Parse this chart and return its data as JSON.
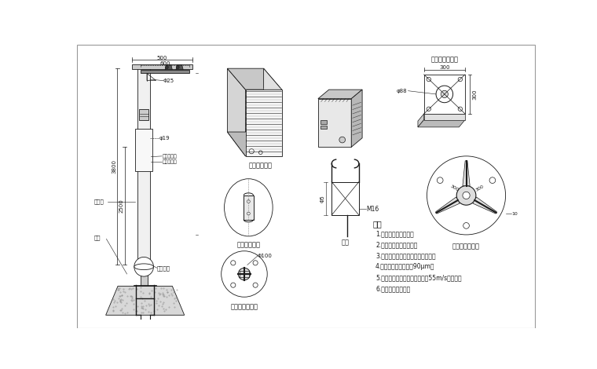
{
  "bg_color": "#ffffff",
  "line_color": "#1a1a1a",
  "labels": {
    "shuixiang": "防水箱放大图",
    "xiufu": "维修孔放大图",
    "jijia": "扬机法兰放大图",
    "dizuo_zheng": "底座法兰正视图",
    "dizuo_fang": "底座法兰放大图",
    "dijiao": "地笼",
    "shuoming": "说明",
    "weixiukong": "维修孔",
    "dizuofalan": "底座法兰",
    "dilong": "地笼",
    "shanglayer": "上层为红色",
    "xialayer": "下层为銀色",
    "line1": "1.主干为国标频锦管。",
    "line2": "2.上下法兰加强届连接。",
    "line3": "3.噪涂后不再进行任何加工和焊接。",
    "line4": "4.钉管弹锦锅层厉孔为90μm。",
    "line5": "5.立杆、梗管和其它部件应能抔55m/s的风速。",
    "line6": "6.接管、避雷针可折"
  },
  "dims": {
    "d500": "500",
    "d600": "600",
    "d3800": "3800",
    "d2500": "2500",
    "phi25": "Φ25",
    "phi19": "φ19",
    "phi88": "φ88",
    "d300h": "300",
    "d300v": "300",
    "M16": "M16",
    "phi5": "Φ5",
    "phi100": "Φ100",
    "d300a": "300",
    "d300b": "300",
    "d10": "10"
  }
}
